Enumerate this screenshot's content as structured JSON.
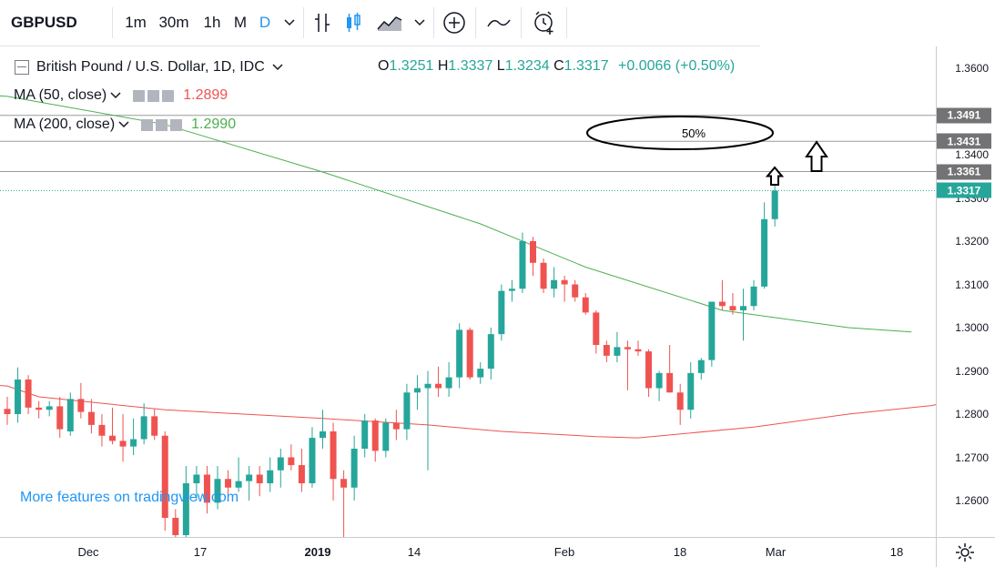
{
  "toolbar": {
    "symbol": "GBPUSD",
    "intervals": [
      "1m",
      "30m",
      "1h",
      "M",
      "D"
    ],
    "active_interval": "D",
    "icons": [
      "chevron-down-icon",
      "bar-style-icon",
      "candle-style-icon",
      "area-style-icon",
      "chevron-down-icon",
      "add-indicator-icon",
      "compare-icon",
      "alert-icon"
    ]
  },
  "legend": {
    "title": "British Pound / U.S. Dollar, 1D, IDC",
    "ohlc": {
      "o_label": "O",
      "o": "1.3251",
      "h_label": "H",
      "h": "1.3337",
      "l_label": "L",
      "l": "1.3234",
      "c_label": "C",
      "c": "1.3317",
      "change": "+0.0066 (+0.50%)"
    },
    "ma50": {
      "label": "MA (50, close)",
      "value": "1.2899",
      "color": "#ef5350"
    },
    "ma200": {
      "label": "MA (200, close)",
      "value": "1.2990",
      "color": "#4caf50"
    }
  },
  "watermark": "More features on tradingview.com",
  "annotation": {
    "ellipse_text": "50%"
  },
  "chart_data": {
    "type": "candlestick",
    "symbol": "GBPUSD",
    "y_axis": {
      "ticks": [
        1.26,
        1.27,
        1.28,
        1.29,
        1.3,
        1.31,
        1.32,
        1.33,
        1.34,
        1.36
      ],
      "tick_labels": [
        "1.2600",
        "1.2700",
        "1.2800",
        "1.2900",
        "1.3000",
        "1.3100",
        "1.3200",
        "1.3300",
        "1.3400",
        "1.3600"
      ],
      "range": [
        1.2525,
        1.3645
      ]
    },
    "x_axis": {
      "labels": [
        "Dec",
        "17",
        "2019",
        "14",
        "Feb",
        "18",
        "Mar",
        "18"
      ],
      "year_label": "2019",
      "dates": [
        "2018-12-03",
        "2018-12-17",
        "2019-01-01",
        "2019-01-14",
        "2019-02-01",
        "2019-02-18",
        "2019-03-01",
        "2019-03-18"
      ]
    },
    "horizontal_lines": [
      {
        "value": 1.3491,
        "label": "1.3491"
      },
      {
        "value": 1.3431,
        "label": "1.3431"
      },
      {
        "value": 1.3361,
        "label": "1.3361"
      }
    ],
    "last_price": {
      "value": 1.3317,
      "label": "1.3317",
      "color": "#26a69a"
    },
    "candles": [
      {
        "date": "2018-11-19",
        "o": 1.2812,
        "h": 1.284,
        "l": 1.2775,
        "c": 1.28
      },
      {
        "date": "2018-11-20",
        "o": 1.28,
        "h": 1.2908,
        "l": 1.278,
        "c": 1.288
      },
      {
        "date": "2018-11-21",
        "o": 1.288,
        "h": 1.289,
        "l": 1.28,
        "c": 1.2815
      },
      {
        "date": "2018-11-22",
        "o": 1.2815,
        "h": 1.283,
        "l": 1.279,
        "c": 1.281
      },
      {
        "date": "2018-11-23",
        "o": 1.281,
        "h": 1.283,
        "l": 1.2795,
        "c": 1.2818
      },
      {
        "date": "2018-11-26",
        "o": 1.2818,
        "h": 1.284,
        "l": 1.2745,
        "c": 1.2765
      },
      {
        "date": "2018-11-27",
        "o": 1.276,
        "h": 1.285,
        "l": 1.275,
        "c": 1.2835
      },
      {
        "date": "2018-11-28",
        "o": 1.2835,
        "h": 1.2872,
        "l": 1.279,
        "c": 1.2805
      },
      {
        "date": "2018-11-29",
        "o": 1.2805,
        "h": 1.2835,
        "l": 1.2755,
        "c": 1.2775
      },
      {
        "date": "2018-11-30",
        "o": 1.2775,
        "h": 1.28,
        "l": 1.2725,
        "c": 1.275
      },
      {
        "date": "2018-12-03",
        "o": 1.275,
        "h": 1.2815,
        "l": 1.273,
        "c": 1.2738
      },
      {
        "date": "2018-12-04",
        "o": 1.2738,
        "h": 1.28,
        "l": 1.269,
        "c": 1.2725
      },
      {
        "date": "2018-12-05",
        "o": 1.2725,
        "h": 1.279,
        "l": 1.2705,
        "c": 1.2742
      },
      {
        "date": "2018-12-06",
        "o": 1.2742,
        "h": 1.2825,
        "l": 1.273,
        "c": 1.2795
      },
      {
        "date": "2018-12-07",
        "o": 1.2795,
        "h": 1.2812,
        "l": 1.274,
        "c": 1.275
      },
      {
        "date": "2018-12-10",
        "o": 1.275,
        "h": 1.276,
        "l": 1.253,
        "c": 1.256
      },
      {
        "date": "2018-12-11",
        "o": 1.256,
        "h": 1.258,
        "l": 1.25,
        "c": 1.252
      },
      {
        "date": "2018-12-12",
        "o": 1.252,
        "h": 1.268,
        "l": 1.25,
        "c": 1.264
      },
      {
        "date": "2018-12-13",
        "o": 1.264,
        "h": 1.268,
        "l": 1.26,
        "c": 1.266
      },
      {
        "date": "2018-12-14",
        "o": 1.266,
        "h": 1.268,
        "l": 1.257,
        "c": 1.2595
      },
      {
        "date": "2018-12-17",
        "o": 1.2595,
        "h": 1.268,
        "l": 1.258,
        "c": 1.265
      },
      {
        "date": "2018-12-18",
        "o": 1.265,
        "h": 1.267,
        "l": 1.26,
        "c": 1.263
      },
      {
        "date": "2018-12-19",
        "o": 1.263,
        "h": 1.27,
        "l": 1.262,
        "c": 1.2645
      },
      {
        "date": "2018-12-20",
        "o": 1.2645,
        "h": 1.268,
        "l": 1.26,
        "c": 1.266
      },
      {
        "date": "2018-12-21",
        "o": 1.266,
        "h": 1.268,
        "l": 1.261,
        "c": 1.264
      },
      {
        "date": "2018-12-24",
        "o": 1.264,
        "h": 1.27,
        "l": 1.262,
        "c": 1.267
      },
      {
        "date": "2018-12-26",
        "o": 1.267,
        "h": 1.272,
        "l": 1.263,
        "c": 1.27
      },
      {
        "date": "2018-12-27",
        "o": 1.27,
        "h": 1.273,
        "l": 1.267,
        "c": 1.2682
      },
      {
        "date": "2018-12-28",
        "o": 1.2682,
        "h": 1.272,
        "l": 1.262,
        "c": 1.264
      },
      {
        "date": "2018-12-31",
        "o": 1.264,
        "h": 1.277,
        "l": 1.263,
        "c": 1.2745
      },
      {
        "date": "2019-01-01",
        "o": 1.2745,
        "h": 1.281,
        "l": 1.272,
        "c": 1.276
      },
      {
        "date": "2019-01-02",
        "o": 1.276,
        "h": 1.278,
        "l": 1.26,
        "c": 1.265
      },
      {
        "date": "2019-01-03",
        "o": 1.265,
        "h": 1.267,
        "l": 1.244,
        "c": 1.263
      },
      {
        "date": "2019-01-04",
        "o": 1.263,
        "h": 1.275,
        "l": 1.26,
        "c": 1.272
      },
      {
        "date": "2019-01-07",
        "o": 1.272,
        "h": 1.28,
        "l": 1.27,
        "c": 1.2785
      },
      {
        "date": "2019-01-08",
        "o": 1.2785,
        "h": 1.279,
        "l": 1.269,
        "c": 1.2715
      },
      {
        "date": "2019-01-09",
        "o": 1.2715,
        "h": 1.279,
        "l": 1.27,
        "c": 1.278
      },
      {
        "date": "2019-01-10",
        "o": 1.278,
        "h": 1.281,
        "l": 1.274,
        "c": 1.2765
      },
      {
        "date": "2019-01-11",
        "o": 1.2765,
        "h": 1.287,
        "l": 1.274,
        "c": 1.285
      },
      {
        "date": "2019-01-14",
        "o": 1.285,
        "h": 1.289,
        "l": 1.281,
        "c": 1.286
      },
      {
        "date": "2019-01-15",
        "o": 1.286,
        "h": 1.29,
        "l": 1.267,
        "c": 1.287
      },
      {
        "date": "2019-01-16",
        "o": 1.287,
        "h": 1.291,
        "l": 1.284,
        "c": 1.286
      },
      {
        "date": "2019-01-17",
        "o": 1.286,
        "h": 1.292,
        "l": 1.284,
        "c": 1.2885
      },
      {
        "date": "2019-01-18",
        "o": 1.2885,
        "h": 1.301,
        "l": 1.286,
        "c": 1.2995
      },
      {
        "date": "2019-01-21",
        "o": 1.2995,
        "h": 1.3,
        "l": 1.288,
        "c": 1.2885
      },
      {
        "date": "2019-01-22",
        "o": 1.2885,
        "h": 1.292,
        "l": 1.287,
        "c": 1.2905
      },
      {
        "date": "2019-01-23",
        "o": 1.2905,
        "h": 1.3,
        "l": 1.288,
        "c": 1.2985
      },
      {
        "date": "2019-01-24",
        "o": 1.2985,
        "h": 1.31,
        "l": 1.297,
        "c": 1.3085
      },
      {
        "date": "2019-01-25",
        "o": 1.3085,
        "h": 1.311,
        "l": 1.306,
        "c": 1.309
      },
      {
        "date": "2019-01-28",
        "o": 1.309,
        "h": 1.322,
        "l": 1.308,
        "c": 1.32
      },
      {
        "date": "2019-01-29",
        "o": 1.32,
        "h": 1.321,
        "l": 1.312,
        "c": 1.315
      },
      {
        "date": "2019-01-30",
        "o": 1.315,
        "h": 1.316,
        "l": 1.308,
        "c": 1.309
      },
      {
        "date": "2019-01-31",
        "o": 1.309,
        "h": 1.314,
        "l": 1.307,
        "c": 1.311
      },
      {
        "date": "2019-02-01",
        "o": 1.311,
        "h": 1.312,
        "l": 1.306,
        "c": 1.31
      },
      {
        "date": "2019-02-04",
        "o": 1.31,
        "h": 1.311,
        "l": 1.306,
        "c": 1.307
      },
      {
        "date": "2019-02-05",
        "o": 1.307,
        "h": 1.308,
        "l": 1.303,
        "c": 1.3035
      },
      {
        "date": "2019-02-06",
        "o": 1.3035,
        "h": 1.304,
        "l": 1.294,
        "c": 1.296
      },
      {
        "date": "2019-02-07",
        "o": 1.296,
        "h": 1.297,
        "l": 1.292,
        "c": 1.2935
      },
      {
        "date": "2019-02-08",
        "o": 1.2935,
        "h": 1.299,
        "l": 1.292,
        "c": 1.2955
      },
      {
        "date": "2019-02-11",
        "o": 1.2955,
        "h": 1.297,
        "l": 1.2855,
        "c": 1.295
      },
      {
        "date": "2019-02-12",
        "o": 1.295,
        "h": 1.297,
        "l": 1.2935,
        "c": 1.2945
      },
      {
        "date": "2019-02-13",
        "o": 1.2945,
        "h": 1.295,
        "l": 1.284,
        "c": 1.286
      },
      {
        "date": "2019-02-14",
        "o": 1.286,
        "h": 1.29,
        "l": 1.283,
        "c": 1.2895
      },
      {
        "date": "2019-02-15",
        "o": 1.2895,
        "h": 1.296,
        "l": 1.285,
        "c": 1.285
      },
      {
        "date": "2019-02-18",
        "o": 1.285,
        "h": 1.287,
        "l": 1.2775,
        "c": 1.281
      },
      {
        "date": "2019-02-19",
        "o": 1.281,
        "h": 1.292,
        "l": 1.279,
        "c": 1.2895
      },
      {
        "date": "2019-02-20",
        "o": 1.2895,
        "h": 1.293,
        "l": 1.288,
        "c": 1.2925
      },
      {
        "date": "2019-02-21",
        "o": 1.2925,
        "h": 1.306,
        "l": 1.291,
        "c": 1.306
      },
      {
        "date": "2019-02-22",
        "o": 1.306,
        "h": 1.311,
        "l": 1.304,
        "c": 1.305
      },
      {
        "date": "2019-02-25",
        "o": 1.305,
        "h": 1.308,
        "l": 1.303,
        "c": 1.304
      },
      {
        "date": "2019-02-26",
        "o": 1.304,
        "h": 1.309,
        "l": 1.297,
        "c": 1.305
      },
      {
        "date": "2019-02-27",
        "o": 1.305,
        "h": 1.311,
        "l": 1.304,
        "c": 1.3095
      },
      {
        "date": "2019-02-28",
        "o": 1.3095,
        "h": 1.329,
        "l": 1.309,
        "c": 1.3251
      },
      {
        "date": "2019-03-01",
        "o": 1.3251,
        "h": 1.3337,
        "l": 1.3234,
        "c": 1.3317
      }
    ],
    "ma50_line": [
      [
        1.2895,
        -20
      ],
      [
        1.2865,
        0
      ],
      [
        1.284,
        3
      ],
      [
        1.281,
        15
      ],
      [
        1.279,
        30
      ],
      [
        1.2775,
        40
      ],
      [
        1.276,
        47
      ],
      [
        1.2748,
        56
      ],
      [
        1.2745,
        60
      ],
      [
        1.277,
        71
      ],
      [
        1.28,
        80
      ],
      [
        1.282,
        88
      ],
      [
        1.2895,
        100
      ]
    ],
    "ma200_line": [
      [
        1.3565,
        -20
      ],
      [
        1.3535,
        0
      ],
      [
        1.347,
        15
      ],
      [
        1.336,
        30
      ],
      [
        1.324,
        45
      ],
      [
        1.314,
        55
      ],
      [
        1.304,
        68
      ],
      [
        1.3,
        80
      ],
      [
        1.299,
        86
      ]
    ]
  }
}
